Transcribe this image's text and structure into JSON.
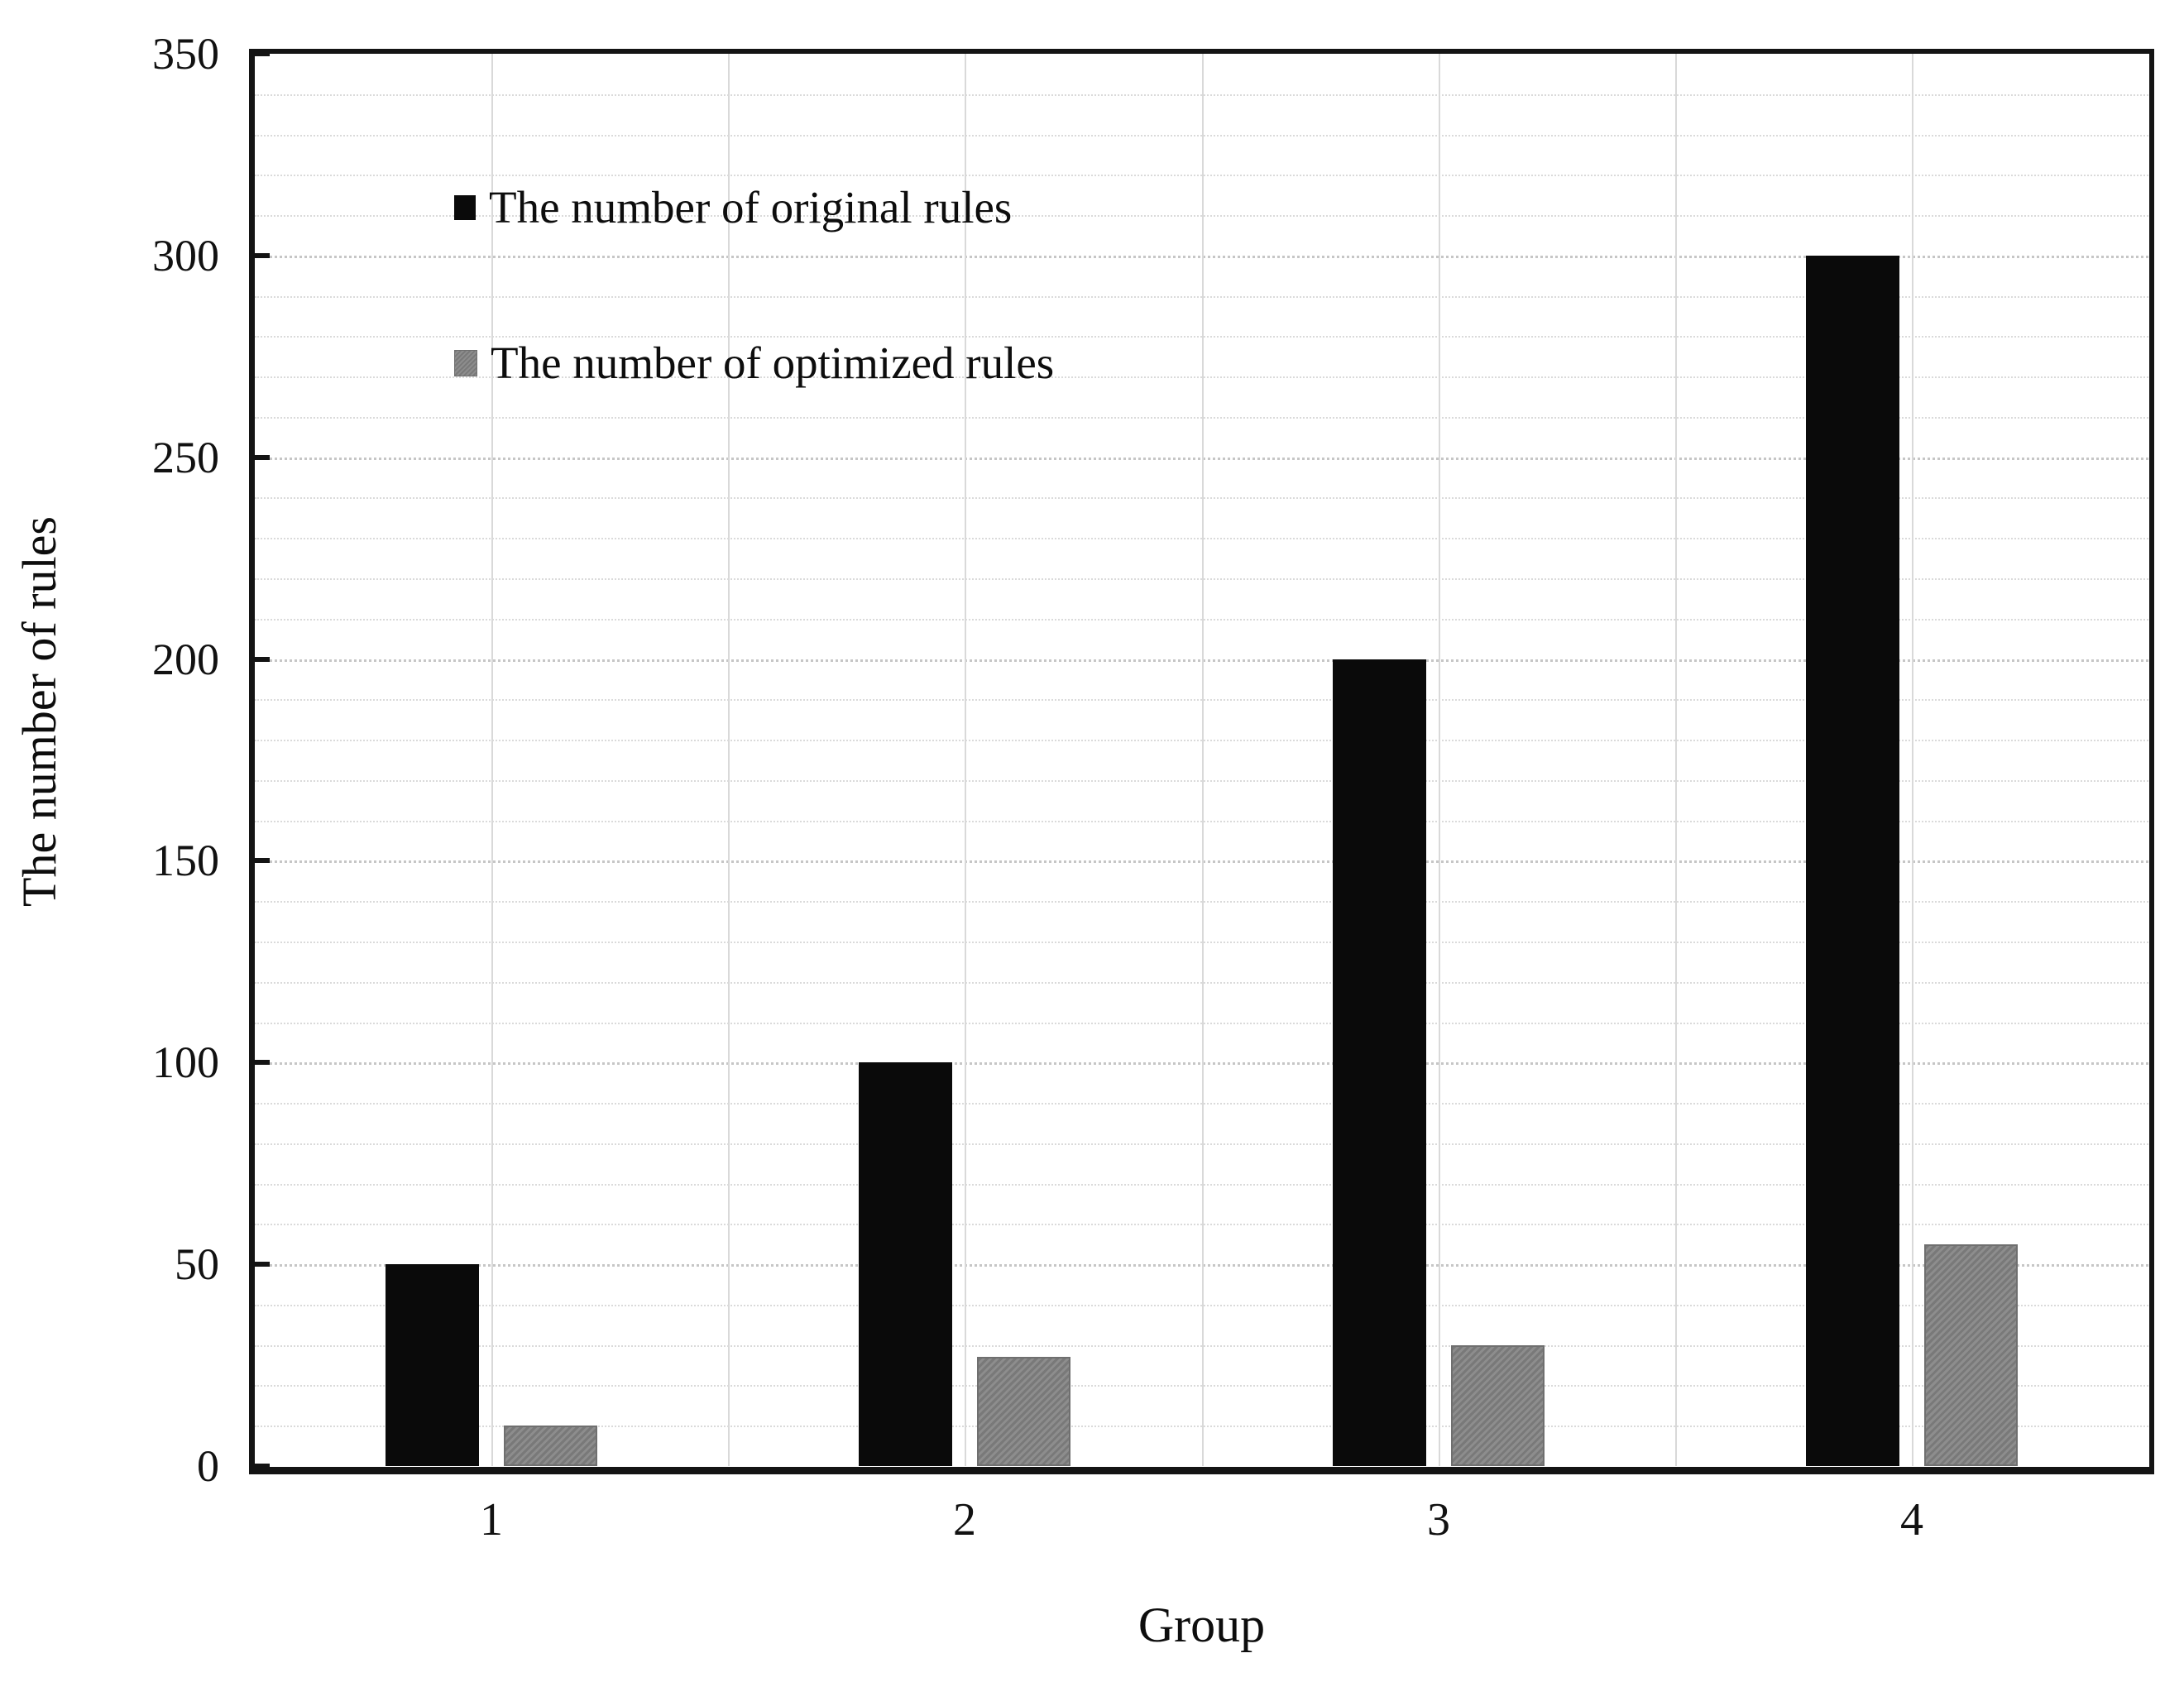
{
  "chart_data": {
    "type": "bar",
    "title": "",
    "xlabel": "Group",
    "ylabel": "The number of rules",
    "categories": [
      "1",
      "2",
      "3",
      "4"
    ],
    "series": [
      {
        "name": "The number of original rules",
        "key": "original",
        "color": "#0a0a0a",
        "values": [
          50,
          100,
          200,
          300
        ]
      },
      {
        "name": "The number of optimized rules",
        "key": "optimized",
        "color": "#878787",
        "values": [
          10,
          27,
          30,
          55
        ]
      }
    ],
    "ylim": [
      0,
      350
    ],
    "ytick_step": 50,
    "minor_grid_step": 10,
    "grid": true,
    "legend_position": "top-left-inside",
    "colors": {
      "frame": "#141414",
      "minor_gridline": "#dadada",
      "major_gridline": "#c6c6c6",
      "vertical_gridline": "#d9d9d9",
      "background": "#ffffff"
    }
  }
}
